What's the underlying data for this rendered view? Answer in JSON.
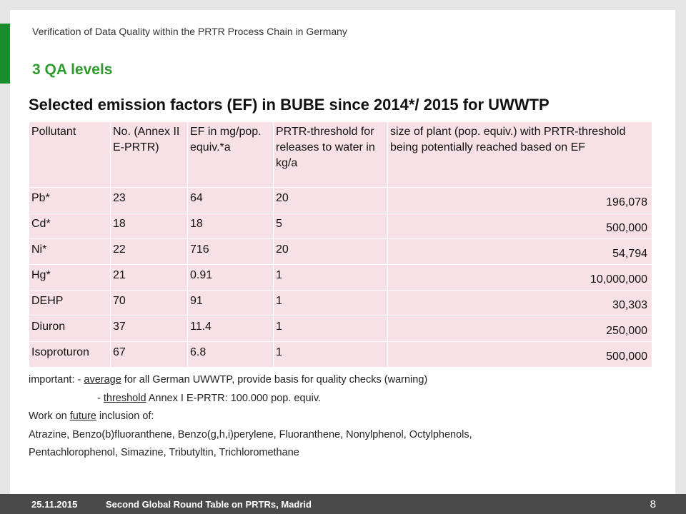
{
  "header": {
    "title": "Verification of Data Quality within the PRTR Process Chain in Germany",
    "section": "3 QA levels"
  },
  "main_title": "Selected emission factors (EF) in BUBE since 2014*/ 2015 for UWWTP",
  "table": {
    "columns": [
      "Pollutant",
      "No. (Annex II E-PRTR)",
      "EF in mg/pop. equiv.*a",
      "PRTR-threshold for releases to water in kg/a",
      "size of plant (pop. equiv.) with PRTR-threshold being potentially reached based on EF"
    ],
    "rows": [
      [
        "Pb*",
        "23",
        "64",
        "20",
        "196,078"
      ],
      [
        "Cd*",
        "18",
        "18",
        "5",
        "500,000"
      ],
      [
        "Ni*",
        "22",
        "716",
        "20",
        "54,794"
      ],
      [
        "Hg*",
        "21",
        "0.91",
        "1",
        "10,000,000"
      ],
      [
        "DEHP",
        "70",
        "91",
        "1",
        "30,303"
      ],
      [
        "Diuron",
        "37",
        "11.4",
        "1",
        "250,000"
      ],
      [
        "Isoproturon",
        "67",
        "6.8",
        "1",
        "500,000"
      ]
    ]
  },
  "notes": {
    "important_label": "important:",
    "line1_prefix": " - ",
    "line1_underlined": "average",
    "line1_rest": " for all German UWWTP, provide basis for quality checks (warning)",
    "line2_prefix": "- ",
    "line2_underlined": "threshold",
    "line2_rest": " Annex I E-PRTR: 100.000 pop. equiv.",
    "line3_prefix": "Work on ",
    "line3_underlined": "future",
    "line3_rest": " inclusion of:",
    "line4": "Atrazine, Benzo(b)fluoranthene, Benzo(g,h,i)perylene, Fluoranthene, Nonylphenol, Octylphenols,",
    "line5": "Pentachlorophenol, Simazine, Tributyltin, Trichloromethane"
  },
  "footer": {
    "date": "25.11.2015",
    "event": "Second Global Round Table on PRTRs, Madrid",
    "page": "8"
  },
  "colors": {
    "accent_green": "#1a8c2e",
    "section_green": "#2e9b2e",
    "table_fill": "#f8e1e6",
    "footer_bg": "#4a4a4a"
  }
}
